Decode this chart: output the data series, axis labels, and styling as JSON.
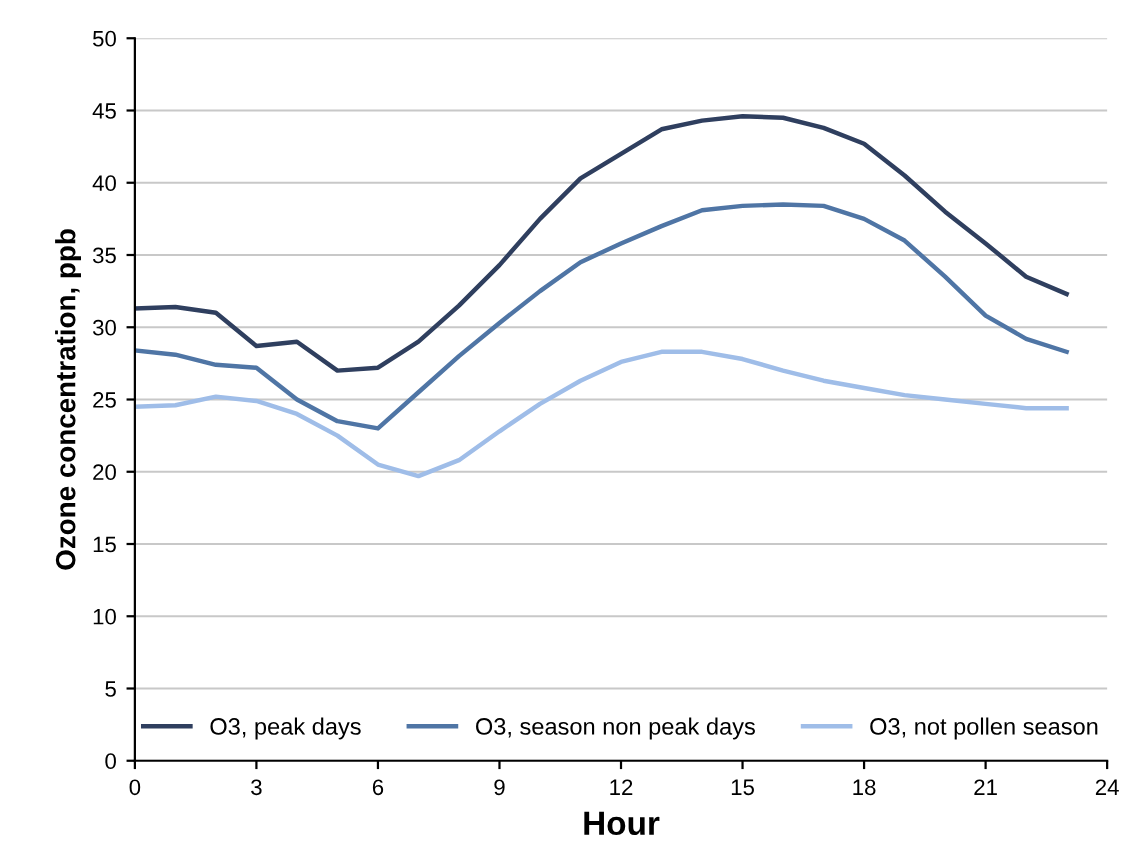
{
  "chart_data": {
    "type": "line",
    "xlabel": "Hour",
    "ylabel": "Ozone concentration, ppb",
    "x": [
      0,
      1,
      2,
      3,
      4,
      5,
      6,
      7,
      8,
      9,
      10,
      11,
      12,
      13,
      14,
      15,
      16,
      17,
      18,
      19,
      20,
      21,
      22,
      23
    ],
    "series": [
      {
        "name": "O3, peak days",
        "color": "#2f3f5f",
        "values": [
          31.3,
          31.4,
          31,
          28.7,
          29,
          27,
          27.2,
          29,
          31.5,
          34.3,
          37.5,
          40.3,
          42,
          43.7,
          44.3,
          44.6,
          44.5,
          43.8,
          42.7,
          40.5,
          38,
          35.8,
          33.5,
          32.3
        ]
      },
      {
        "name": "O3, season non peak days",
        "color": "#4f75a5",
        "values": [
          28.4,
          28.1,
          27.4,
          27.2,
          25,
          23.5,
          23,
          25.5,
          28,
          30.3,
          32.5,
          34.5,
          35.8,
          37,
          38.1,
          38.4,
          38.5,
          38.4,
          37.5,
          36,
          33.5,
          30.8,
          29.2,
          28.3
        ]
      },
      {
        "name": "O3, not pollen season",
        "color": "#9fbde8",
        "values": [
          24.5,
          24.6,
          25.2,
          24.9,
          24,
          22.5,
          20.5,
          19.7,
          20.8,
          22.8,
          24.7,
          26.3,
          27.6,
          28.3,
          28.3,
          27.8,
          27,
          26.3,
          25.8,
          25.3,
          25,
          24.7,
          24.4,
          24.4
        ]
      }
    ],
    "xlim": [
      0,
      24
    ],
    "xticks": [
      0,
      3,
      6,
      9,
      12,
      15,
      18,
      21,
      24
    ],
    "ylim": [
      0,
      50
    ],
    "yticks": [
      0,
      5,
      10,
      15,
      20,
      25,
      30,
      35,
      40,
      45,
      50
    ],
    "grid": "y",
    "legend": "bottom",
    "marker": "none",
    "line_style": "solid"
  }
}
